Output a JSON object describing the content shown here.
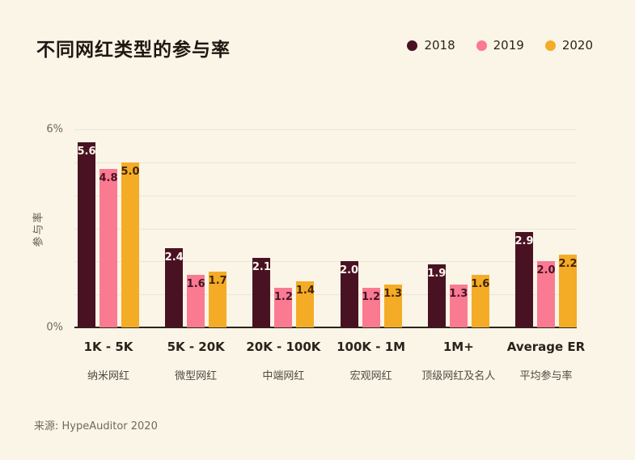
{
  "page": {
    "background": "#fbf5e7"
  },
  "footer": {
    "source": "来源: HypeAuditor 2020"
  },
  "chart_data": {
    "type": "bar",
    "title": "不同网红类型的参与率",
    "xlabel": "",
    "ylabel": "参与率",
    "ylim": [
      0,
      6
    ],
    "grid": true,
    "gridline_step": 1,
    "legend_position": "top-right",
    "yticks": [
      {
        "value": 6,
        "label": "6%"
      },
      {
        "value": 0,
        "label": "0%"
      }
    ],
    "categories": [
      {
        "primary": "1K - 5K",
        "secondary": "纳米网红"
      },
      {
        "primary": "5K - 20K",
        "secondary": "微型网红"
      },
      {
        "primary": "20K - 100K",
        "secondary": "中端网红"
      },
      {
        "primary": "100K - 1M",
        "secondary": "宏观网红"
      },
      {
        "primary": "1M+",
        "secondary": "顶级网红及名人"
      },
      {
        "primary": "Average ER",
        "secondary": "平均参与率"
      }
    ],
    "series": [
      {
        "name": "2018",
        "color": "#491223",
        "label_color": "#fdf7ec",
        "values": [
          5.6,
          2.4,
          2.1,
          2.0,
          1.9,
          2.9
        ]
      },
      {
        "name": "2019",
        "color": "#fa7a92",
        "label_color": "#471427",
        "values": [
          4.8,
          1.6,
          1.2,
          1.2,
          1.3,
          2.0
        ]
      },
      {
        "name": "2020",
        "color": "#f4ac26",
        "label_color": "#42250b",
        "values": [
          5.0,
          1.7,
          1.4,
          1.3,
          1.6,
          2.2
        ]
      }
    ]
  }
}
